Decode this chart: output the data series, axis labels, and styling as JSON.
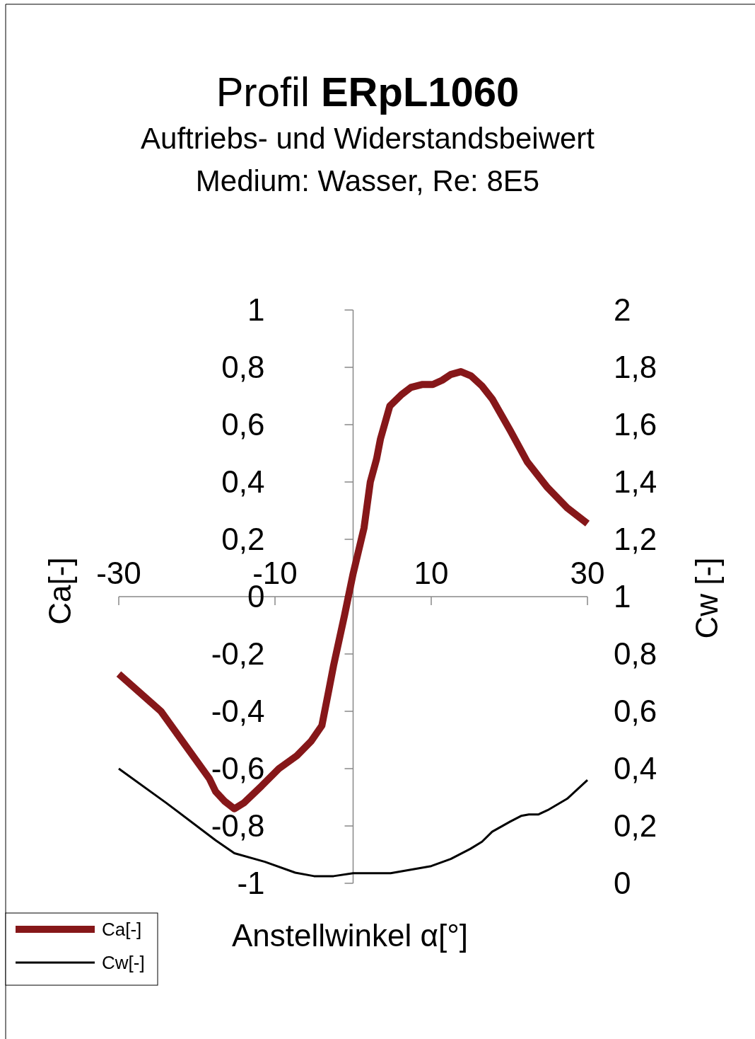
{
  "chart_data": {
    "type": "line",
    "title": "Profil ERpL1060",
    "subtitle": "Auftriebs- und Widerstandsbeiwert\nMedium: Wasser, Re: 8E5",
    "xlabel": "Anstellwinkel α[°]",
    "ylabel": "Ca[-]",
    "y2label": "Cw [-]",
    "xlim": [
      -30,
      30
    ],
    "xticks": [
      -30,
      -10,
      10,
      30
    ],
    "ylim": [
      -1,
      1
    ],
    "yticks": [
      {
        "value": -1,
        "label": "-1"
      },
      {
        "value": -0.8,
        "label": "-0,8"
      },
      {
        "value": -0.6,
        "label": "-0,6"
      },
      {
        "value": -0.4,
        "label": "-0,4"
      },
      {
        "value": -0.2,
        "label": "-0,2"
      },
      {
        "value": 0,
        "label": "0"
      },
      {
        "value": 0.2,
        "label": "0,2"
      },
      {
        "value": 0.4,
        "label": "0,4"
      },
      {
        "value": 0.6,
        "label": "0,6"
      },
      {
        "value": 0.8,
        "label": "0,8"
      },
      {
        "value": 1,
        "label": "1"
      }
    ],
    "y2lim": [
      0,
      2
    ],
    "y2ticks": [
      {
        "value": 0,
        "label": "0"
      },
      {
        "value": 0.2,
        "label": "0,2"
      },
      {
        "value": 0.4,
        "label": "0,4"
      },
      {
        "value": 0.6,
        "label": "0,6"
      },
      {
        "value": 0.8,
        "label": "0,8"
      },
      {
        "value": 1,
        "label": "1"
      },
      {
        "value": 1.2,
        "label": "1,2"
      },
      {
        "value": 1.4,
        "label": "1,4"
      },
      {
        "value": 1.6,
        "label": "1,6"
      },
      {
        "value": 1.8,
        "label": "1,8"
      },
      {
        "value": 2,
        "label": "2"
      }
    ],
    "legend": "bottom left",
    "series": [
      {
        "name": "Ca[-]",
        "color": "#861719",
        "x": [
          -30,
          -24.6,
          -18.4,
          -17.6,
          -16.4,
          -15.2,
          -14,
          -11.7,
          -9.5,
          -7.2,
          -5.4,
          -4,
          -3.1,
          -2.5,
          -1.1,
          0,
          1.4,
          2.2,
          3,
          3.5,
          4.7,
          6.2,
          7.4,
          8.8,
          10.2,
          11.4,
          12.5,
          13.8,
          15.1,
          16.5,
          17.8,
          20.1,
          22.3,
          24.9,
          27.4,
          30
        ],
        "values": [
          -0.27,
          -0.4,
          -0.635,
          -0.68,
          -0.715,
          -0.74,
          -0.72,
          -0.66,
          -0.6,
          -0.555,
          -0.505,
          -0.45,
          -0.325,
          -0.24,
          -0.065,
          0.08,
          0.24,
          0.4,
          0.48,
          0.55,
          0.665,
          0.705,
          0.73,
          0.74,
          0.74,
          0.755,
          0.775,
          0.785,
          0.77,
          0.735,
          0.69,
          0.58,
          0.47,
          0.38,
          0.31,
          0.255
        ]
      },
      {
        "name": "Cw[-]",
        "color": "#000000",
        "axis": "y2",
        "x": [
          -30,
          -23.9,
          -17.6,
          -15.2,
          -11.3,
          -7.4,
          -5,
          -2.5,
          0,
          4.8,
          10,
          12.5,
          15,
          16.5,
          17.8,
          20.1,
          21.5,
          22.5,
          23.7,
          24.9,
          27.4,
          30
        ],
        "values": [
          0.4,
          0.28,
          0.15,
          0.105,
          0.075,
          0.037,
          0.025,
          0.025,
          0.035,
          0.035,
          0.06,
          0.085,
          0.12,
          0.145,
          0.18,
          0.215,
          0.235,
          0.24,
          0.24,
          0.255,
          0.295,
          0.36
        ]
      }
    ]
  }
}
